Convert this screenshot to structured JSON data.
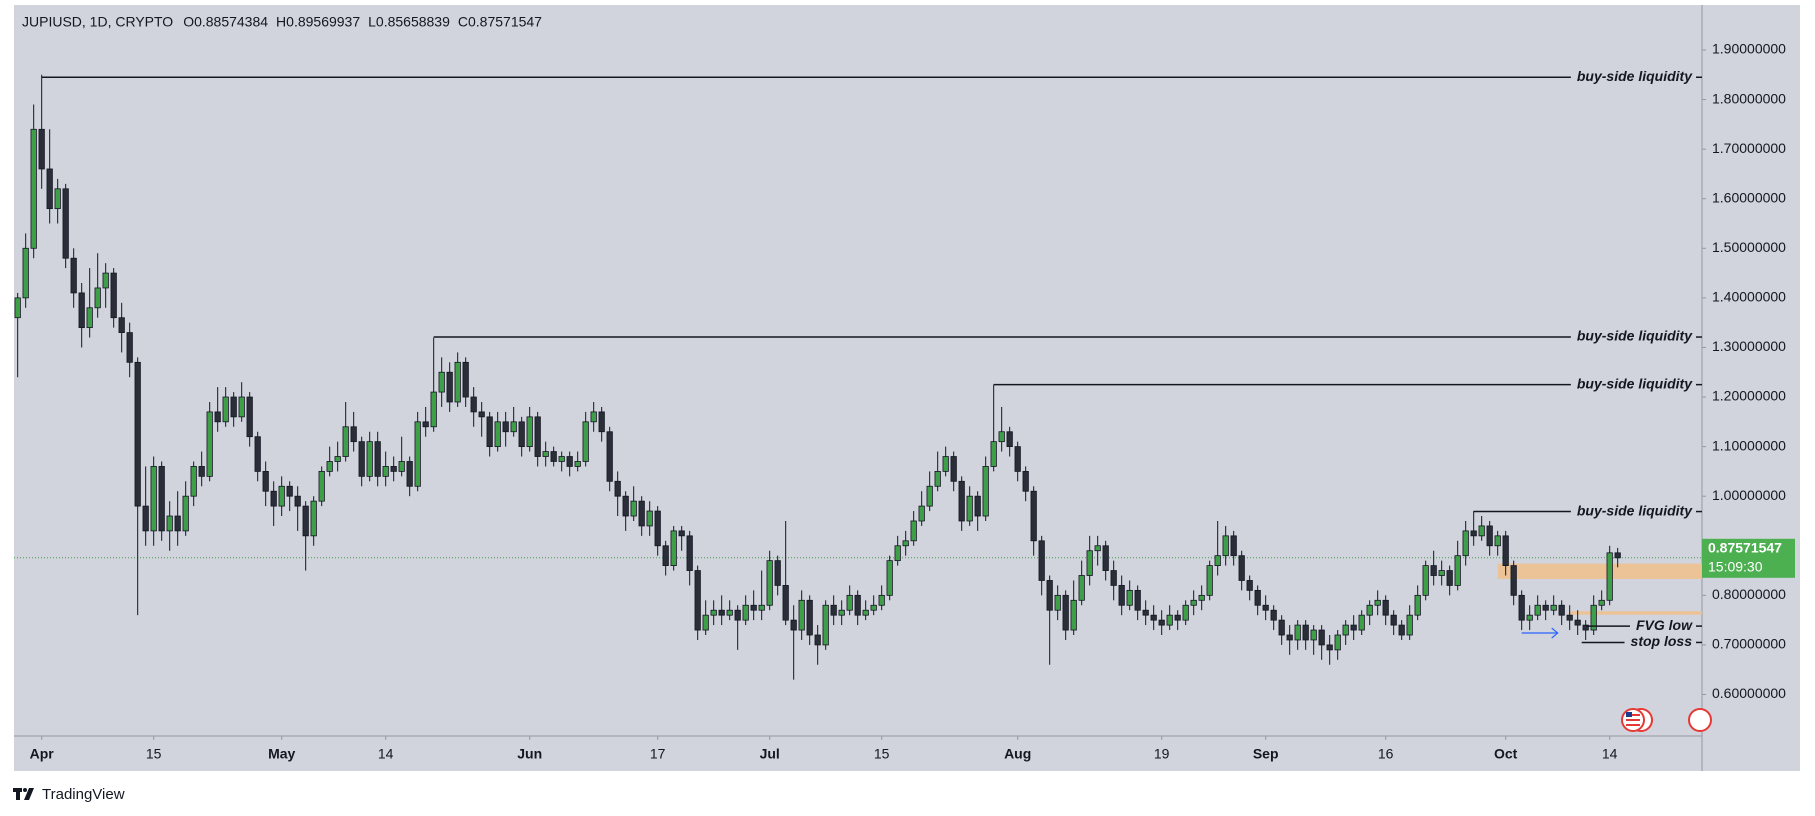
{
  "chart_data": {
    "type": "candlestick",
    "title": "JUPIUSD, 1D, CRYPTO",
    "ohlc_legend": [
      "O0.88574384",
      "H0.89569937",
      "L0.85658839",
      "C0.87571547"
    ],
    "up_color": "#3f9e48",
    "down_color": "#2a2e39",
    "open": [
      1.36,
      1.4,
      1.5,
      1.74,
      1.66,
      1.58,
      1.62,
      1.48,
      1.41,
      1.34,
      1.38,
      1.42,
      1.45,
      1.36,
      1.33,
      1.27,
      0.98,
      0.93,
      1.06,
      0.93,
      0.96,
      0.93,
      1.0,
      1.06,
      1.04,
      1.17,
      1.15,
      1.2,
      1.16,
      1.2,
      1.12,
      1.05,
      1.01,
      0.98,
      1.02,
      1.0,
      0.98,
      0.92,
      0.99,
      1.05,
      1.07,
      1.08,
      1.14,
      1.11,
      1.04,
      1.11,
      1.04,
      1.06,
      1.05,
      1.07,
      1.02,
      1.15,
      1.14,
      1.21,
      1.25,
      1.19,
      1.27,
      1.2,
      1.17,
      1.16,
      1.1,
      1.15,
      1.13,
      1.15,
      1.1,
      1.16,
      1.08,
      1.09,
      1.07,
      1.08,
      1.06,
      1.07,
      1.15,
      1.17,
      1.13,
      1.03,
      1.0,
      0.96,
      0.99,
      0.94,
      0.97,
      0.9,
      0.86,
      0.93,
      0.92,
      0.85,
      0.73,
      0.76,
      0.77,
      0.76,
      0.77,
      0.75,
      0.78,
      0.77,
      0.78,
      0.87,
      0.82,
      0.75,
      0.73,
      0.79,
      0.72,
      0.7,
      0.78,
      0.76,
      0.77,
      0.8,
      0.76,
      0.77,
      0.78,
      0.8,
      0.87,
      0.9,
      0.91,
      0.95,
      0.98,
      1.02,
      1.05,
      1.08,
      1.03,
      0.95,
      1.0,
      0.96,
      1.06,
      1.11,
      1.13,
      1.1,
      1.05,
      1.01,
      0.91,
      0.83,
      0.77,
      0.8,
      0.73,
      0.79,
      0.84,
      0.89,
      0.9,
      0.85,
      0.82,
      0.78,
      0.81,
      0.77,
      0.76,
      0.75,
      0.74,
      0.76,
      0.75,
      0.78,
      0.79,
      0.8,
      0.86,
      0.88,
      0.92,
      0.88,
      0.83,
      0.81,
      0.78,
      0.77,
      0.75,
      0.72,
      0.71,
      0.74,
      0.71,
      0.73,
      0.7,
      0.69,
      0.72,
      0.74,
      0.73,
      0.76,
      0.78,
      0.79,
      0.76,
      0.74,
      0.72,
      0.76,
      0.8,
      0.86,
      0.84,
      0.85,
      0.82,
      0.88,
      0.93,
      0.92,
      0.94,
      0.9,
      0.92,
      0.86,
      0.8,
      0.75,
      0.76,
      0.78,
      0.77,
      0.78,
      0.76,
      0.75,
      0.74,
      0.73,
      0.78,
      0.79,
      0.88574384
    ],
    "high": [
      1.41,
      1.53,
      1.79,
      1.85,
      1.74,
      1.64,
      1.63,
      1.5,
      1.43,
      1.46,
      1.49,
      1.47,
      1.46,
      1.39,
      1.35,
      1.28,
      1.06,
      1.08,
      1.07,
      0.99,
      1.01,
      1.03,
      1.07,
      1.09,
      1.19,
      1.22,
      1.22,
      1.21,
      1.23,
      1.21,
      1.13,
      1.07,
      1.03,
      1.04,
      1.03,
      1.02,
      0.99,
      1.0,
      1.06,
      1.1,
      1.11,
      1.19,
      1.17,
      1.12,
      1.13,
      1.13,
      1.09,
      1.08,
      1.12,
      1.08,
      1.17,
      1.18,
      1.32,
      1.28,
      1.27,
      1.29,
      1.28,
      1.22,
      1.19,
      1.17,
      1.17,
      1.17,
      1.18,
      1.16,
      1.18,
      1.17,
      1.11,
      1.1,
      1.09,
      1.09,
      1.09,
      1.17,
      1.19,
      1.18,
      1.14,
      1.05,
      1.01,
      1.02,
      1.0,
      0.99,
      0.98,
      0.91,
      0.94,
      0.94,
      0.93,
      0.86,
      0.79,
      0.79,
      0.8,
      0.79,
      0.78,
      0.8,
      0.81,
      0.85,
      0.89,
      0.88,
      0.95,
      0.78,
      0.81,
      0.8,
      0.74,
      0.79,
      0.8,
      0.79,
      0.82,
      0.81,
      0.79,
      0.8,
      0.82,
      0.88,
      0.92,
      0.93,
      0.97,
      1.01,
      1.05,
      1.09,
      1.1,
      1.09,
      1.04,
      1.02,
      1.01,
      1.08,
      1.225,
      1.18,
      1.14,
      1.11,
      1.06,
      1.02,
      0.92,
      0.84,
      0.82,
      0.81,
      0.83,
      0.87,
      0.92,
      0.92,
      0.91,
      0.87,
      0.84,
      0.83,
      0.82,
      0.79,
      0.78,
      0.77,
      0.78,
      0.77,
      0.79,
      0.81,
      0.82,
      0.87,
      0.95,
      0.94,
      0.93,
      0.89,
      0.84,
      0.82,
      0.8,
      0.78,
      0.76,
      0.74,
      0.75,
      0.75,
      0.74,
      0.74,
      0.72,
      0.73,
      0.75,
      0.76,
      0.77,
      0.79,
      0.81,
      0.8,
      0.77,
      0.75,
      0.78,
      0.82,
      0.87,
      0.89,
      0.87,
      0.86,
      0.91,
      0.95,
      0.97,
      0.96,
      0.95,
      0.93,
      0.93,
      0.87,
      0.81,
      0.78,
      0.8,
      0.79,
      0.8,
      0.79,
      0.78,
      0.77,
      0.75,
      0.8,
      0.81,
      0.9,
      0.89569937
    ],
    "low": [
      1.24,
      1.38,
      1.48,
      1.62,
      1.55,
      1.55,
      1.46,
      1.38,
      1.3,
      1.32,
      1.36,
      1.38,
      1.34,
      1.29,
      1.24,
      0.76,
      0.9,
      0.9,
      0.91,
      0.89,
      0.9,
      0.92,
      0.98,
      1.02,
      1.03,
      1.13,
      1.14,
      1.14,
      1.15,
      1.1,
      1.03,
      0.98,
      0.94,
      0.96,
      0.97,
      0.93,
      0.85,
      0.9,
      0.98,
      1.04,
      1.05,
      1.07,
      1.09,
      1.02,
      1.03,
      1.02,
      1.02,
      1.03,
      1.04,
      1.0,
      1.01,
      1.12,
      1.13,
      1.18,
      1.17,
      1.18,
      1.18,
      1.14,
      1.12,
      1.08,
      1.09,
      1.1,
      1.12,
      1.08,
      1.09,
      1.06,
      1.06,
      1.06,
      1.05,
      1.04,
      1.05,
      1.06,
      1.13,
      1.11,
      1.01,
      0.96,
      0.93,
      0.95,
      0.92,
      0.92,
      0.88,
      0.84,
      0.85,
      0.89,
      0.82,
      0.71,
      0.72,
      0.74,
      0.74,
      0.75,
      0.69,
      0.74,
      0.75,
      0.75,
      0.77,
      0.8,
      0.74,
      0.63,
      0.71,
      0.7,
      0.66,
      0.69,
      0.74,
      0.74,
      0.76,
      0.74,
      0.75,
      0.76,
      0.77,
      0.79,
      0.86,
      0.88,
      0.9,
      0.94,
      0.97,
      1.01,
      1.04,
      1.01,
      0.93,
      0.94,
      0.93,
      0.95,
      1.05,
      1.09,
      1.08,
      1.03,
      0.99,
      0.88,
      0.8,
      0.66,
      0.75,
      0.71,
      0.72,
      0.78,
      0.82,
      0.86,
      0.83,
      0.79,
      0.76,
      0.77,
      0.75,
      0.74,
      0.73,
      0.72,
      0.73,
      0.73,
      0.74,
      0.76,
      0.77,
      0.79,
      0.84,
      0.86,
      0.86,
      0.81,
      0.79,
      0.76,
      0.75,
      0.73,
      0.7,
      0.68,
      0.69,
      0.69,
      0.68,
      0.67,
      0.66,
      0.67,
      0.7,
      0.71,
      0.72,
      0.74,
      0.76,
      0.74,
      0.72,
      0.71,
      0.71,
      0.75,
      0.79,
      0.82,
      0.82,
      0.8,
      0.81,
      0.86,
      0.9,
      0.91,
      0.88,
      0.88,
      0.84,
      0.78,
      0.73,
      0.73,
      0.75,
      0.75,
      0.76,
      0.74,
      0.73,
      0.72,
      0.71,
      0.72,
      0.77,
      0.78,
      0.85658839
    ],
    "close": [
      1.4,
      1.5,
      1.74,
      1.66,
      1.58,
      1.62,
      1.48,
      1.41,
      1.34,
      1.38,
      1.42,
      1.45,
      1.36,
      1.33,
      1.27,
      0.98,
      0.93,
      1.06,
      0.93,
      0.96,
      0.93,
      1.0,
      1.06,
      1.04,
      1.17,
      1.15,
      1.2,
      1.16,
      1.2,
      1.12,
      1.05,
      1.01,
      0.98,
      1.02,
      1.0,
      0.98,
      0.92,
      0.99,
      1.05,
      1.07,
      1.08,
      1.14,
      1.11,
      1.04,
      1.11,
      1.04,
      1.06,
      1.05,
      1.07,
      1.02,
      1.15,
      1.14,
      1.21,
      1.25,
      1.19,
      1.27,
      1.2,
      1.17,
      1.16,
      1.1,
      1.15,
      1.13,
      1.15,
      1.1,
      1.16,
      1.08,
      1.09,
      1.07,
      1.08,
      1.06,
      1.07,
      1.15,
      1.17,
      1.13,
      1.03,
      1.0,
      0.96,
      0.99,
      0.94,
      0.97,
      0.9,
      0.86,
      0.93,
      0.92,
      0.85,
      0.73,
      0.76,
      0.77,
      0.76,
      0.77,
      0.75,
      0.78,
      0.77,
      0.78,
      0.87,
      0.82,
      0.75,
      0.73,
      0.79,
      0.72,
      0.7,
      0.78,
      0.76,
      0.77,
      0.8,
      0.76,
      0.77,
      0.78,
      0.8,
      0.87,
      0.9,
      0.91,
      0.95,
      0.98,
      1.02,
      1.05,
      1.08,
      1.03,
      0.95,
      1.0,
      0.96,
      1.06,
      1.11,
      1.13,
      1.1,
      1.05,
      1.01,
      0.91,
      0.83,
      0.77,
      0.8,
      0.73,
      0.79,
      0.84,
      0.89,
      0.9,
      0.85,
      0.82,
      0.78,
      0.81,
      0.77,
      0.76,
      0.75,
      0.74,
      0.76,
      0.75,
      0.78,
      0.79,
      0.8,
      0.86,
      0.88,
      0.92,
      0.88,
      0.83,
      0.81,
      0.78,
      0.77,
      0.75,
      0.72,
      0.71,
      0.74,
      0.71,
      0.73,
      0.7,
      0.69,
      0.72,
      0.74,
      0.73,
      0.76,
      0.78,
      0.79,
      0.76,
      0.74,
      0.72,
      0.76,
      0.8,
      0.86,
      0.84,
      0.85,
      0.82,
      0.88,
      0.93,
      0.92,
      0.94,
      0.9,
      0.92,
      0.86,
      0.8,
      0.75,
      0.76,
      0.78,
      0.77,
      0.78,
      0.76,
      0.75,
      0.74,
      0.73,
      0.78,
      0.79,
      0.88574384,
      0.87571547
    ],
    "xlim": [
      -0.46,
      210.54
    ],
    "xticks": [
      {
        "value": 3,
        "label": "Apr"
      },
      {
        "value": 17,
        "label": "15"
      },
      {
        "value": 33,
        "label": "May"
      },
      {
        "value": 46,
        "label": "14"
      },
      {
        "value": 64,
        "label": "Jun"
      },
      {
        "value": 80,
        "label": "17"
      },
      {
        "value": 94,
        "label": "Jul"
      },
      {
        "value": 108,
        "label": "15"
      },
      {
        "value": 125,
        "label": "Aug"
      },
      {
        "value": 143,
        "label": "19"
      },
      {
        "value": 156,
        "label": "Sep"
      },
      {
        "value": 171,
        "label": "16"
      },
      {
        "value": 186,
        "label": "Oct"
      },
      {
        "value": 199,
        "label": "14"
      }
    ],
    "ylim": [
      0.5163,
      1.9887
    ],
    "yticks": [
      {
        "value": 0.6,
        "label": "0.60000000"
      },
      {
        "value": 0.7,
        "label": "0.70000000"
      },
      {
        "value": 0.8,
        "label": "0.80000000"
      },
      {
        "value": 0.9,
        "label": "0.90000000"
      },
      {
        "value": 1,
        "label": "1.00000000"
      },
      {
        "value": 1.1,
        "label": "1.10000000"
      },
      {
        "value": 1.2,
        "label": "1.20000000"
      },
      {
        "value": 1.3,
        "label": "1.30000000"
      },
      {
        "value": 1.4,
        "label": "1.40000000"
      },
      {
        "value": 1.5,
        "label": "1.50000000"
      },
      {
        "value": 1.6,
        "label": "1.60000000"
      },
      {
        "value": 1.7,
        "label": "1.70000000"
      },
      {
        "value": 1.8,
        "label": "1.80000000"
      },
      {
        "value": 1.9,
        "label": "1.90000000"
      }
    ],
    "last_price": 0.87571547,
    "countdown": "15:09:30",
    "annotations": [
      {
        "text": "buy-side liquidity",
        "y": 1.845,
        "x": 3
      },
      {
        "text": "buy-side liquidity",
        "y": 1.321,
        "x": 52
      },
      {
        "text": "buy-side liquidity",
        "y": 1.225,
        "x": 122
      },
      {
        "text": "buy-side liquidity",
        "y": 0.969,
        "x": 182
      },
      {
        "text": "FVG low",
        "y": 0.738,
        "x": 196
      },
      {
        "text": "stop loss",
        "y": 0.705,
        "x": 195.5
      }
    ],
    "zones": [
      {
        "y": [
          0.833,
          0.864
        ],
        "x": 185,
        "color": "#f0c08a"
      },
      {
        "y": [
          0.761,
          0.768
        ],
        "x": 194,
        "color": "#f0c08a"
      }
    ],
    "arrow": {
      "y": 0.724,
      "x": [
        188,
        192.5
      ],
      "color": "#2962ff"
    }
  },
  "brand": "TradingView"
}
